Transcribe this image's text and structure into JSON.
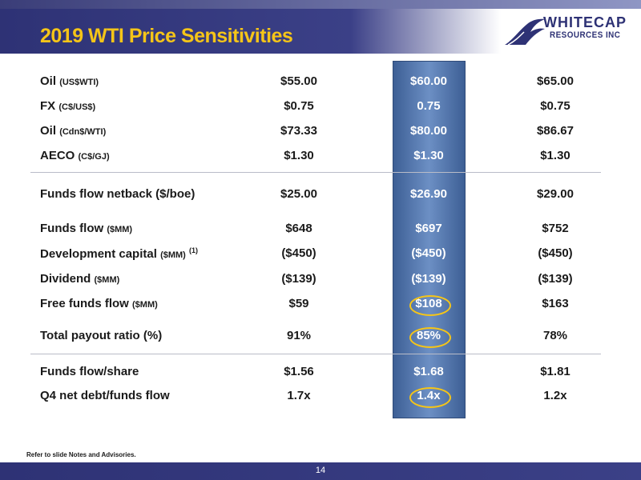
{
  "header": {
    "title": "2019 WTI Price Sensitivities"
  },
  "logo": {
    "line1": "WHITECAP",
    "line2": "RESOURCES INC"
  },
  "rows": [
    {
      "label": "Oil",
      "unit": "(US$WTI)",
      "sup": "",
      "v1": "$55.00",
      "v2": "$60.00",
      "v3": "$65.00"
    },
    {
      "label": "FX",
      "unit": "(C$/US$)",
      "sup": "",
      "v1": "$0.75",
      "v2": "0.75",
      "v3": "$0.75"
    },
    {
      "label": "Oil",
      "unit": "(Cdn$/WTI)",
      "sup": "",
      "v1": "$73.33",
      "v2": "$80.00",
      "v3": "$86.67"
    },
    {
      "label": "AECO",
      "unit": "(C$/GJ)",
      "sup": "",
      "v1": "$1.30",
      "v2": "$1.30",
      "v3": "$1.30"
    },
    {
      "label": "Funds flow netback ($/boe)",
      "unit": "",
      "sup": "",
      "v1": "$25.00",
      "v2": "$26.90",
      "v3": "$29.00"
    },
    {
      "label": "Funds flow",
      "unit": "($MM)",
      "sup": "",
      "v1": "$648",
      "v2": "$697",
      "v3": "$752"
    },
    {
      "label": "Development capital",
      "unit": "($MM)",
      "sup": "(1)",
      "v1": "($450)",
      "v2": "($450)",
      "v3": "($450)"
    },
    {
      "label": "Dividend",
      "unit": "($MM)",
      "sup": "",
      "v1": "($139)",
      "v2": "($139)",
      "v3": "($139)"
    },
    {
      "label": "Free funds flow",
      "unit": "($MM)",
      "sup": "",
      "v1": "$59",
      "v2": "$108",
      "v3": "$163"
    },
    {
      "label": "Total payout ratio (%)",
      "unit": "",
      "sup": "",
      "v1": "91%",
      "v2": "85%",
      "v3": "78%"
    },
    {
      "label": "Funds flow/share",
      "unit": "",
      "sup": "",
      "v1": "$1.56",
      "v2": "$1.68",
      "v3": "$1.81"
    },
    {
      "label": "Q4 net debt/funds flow",
      "unit": "",
      "sup": "",
      "v1": "1.7x",
      "v2": "1.4x",
      "v3": "1.2x"
    }
  ],
  "footnote": "Refer to slide Notes and Advisories.",
  "page_number": "14",
  "colors": {
    "navy": "#2e3275",
    "gold": "#f5c518",
    "highlight_column": "#5a7db5"
  }
}
